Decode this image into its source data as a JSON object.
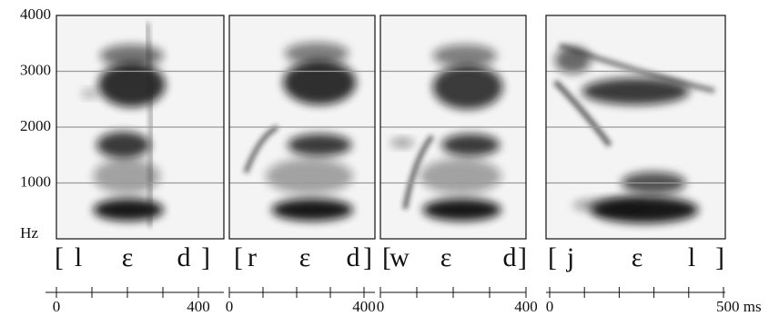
{
  "chart_data": [
    {
      "type": "spectrogram",
      "transcription": [
        "[",
        "l",
        "ε",
        "d",
        "]"
      ],
      "ylabel": "Hz",
      "ylim": [
        0,
        4000
      ],
      "yticks": [
        1000,
        2000,
        3000,
        4000
      ],
      "xlim": [
        0,
        400
      ],
      "xticks": [
        0,
        400
      ],
      "xminorticks": [
        100,
        200,
        300
      ]
    },
    {
      "type": "spectrogram",
      "transcription": [
        "[",
        "r",
        "ε",
        "d",
        "]"
      ],
      "ylim": [
        0,
        4000
      ],
      "yticks": [
        1000,
        2000,
        3000,
        4000
      ],
      "xlim": [
        0,
        400
      ],
      "xticks": [
        0,
        400
      ],
      "xminorticks": [
        100,
        200,
        300
      ]
    },
    {
      "type": "spectrogram",
      "transcription": [
        "[",
        "w",
        "ε",
        "d",
        "]"
      ],
      "ylim": [
        0,
        4000
      ],
      "yticks": [
        1000,
        2000,
        3000,
        4000
      ],
      "xlim": [
        0,
        400
      ],
      "xticks": [
        0,
        400
      ],
      "xminorticks": [
        100,
        200,
        300
      ]
    },
    {
      "type": "spectrogram",
      "transcription": [
        "[",
        "j",
        "ε",
        "l",
        "]"
      ],
      "ylim": [
        0,
        4000
      ],
      "yticks": [
        1000,
        2000,
        3000,
        4000
      ],
      "xlim": [
        0,
        500
      ],
      "xticks": [
        0,
        {
          "value": 500,
          "label": "500 ms"
        }
      ],
      "xminorticks": [
        100,
        200,
        300,
        400
      ]
    }
  ]
}
